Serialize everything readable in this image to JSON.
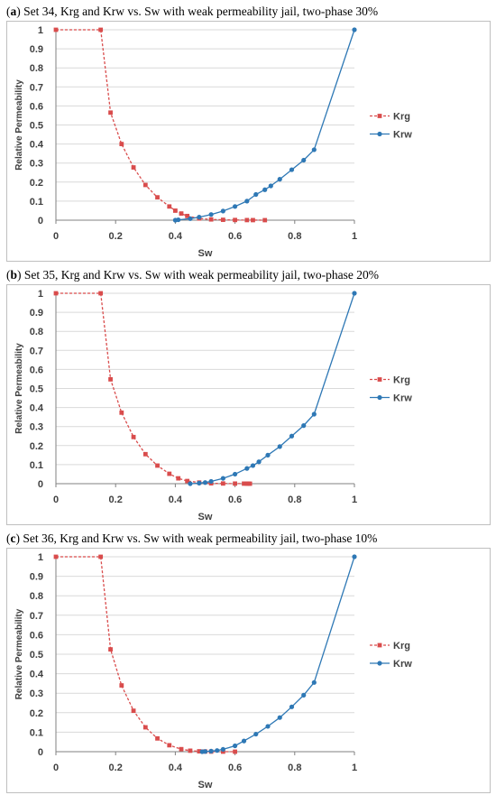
{
  "colors": {
    "krg": "#d94c4c",
    "krw": "#2e78b5",
    "axis": "#808080",
    "grid": "#d9d9d9"
  },
  "chart_data": [
    {
      "type": "line",
      "letter": "a",
      "title": "Set 34, Krg and Krw vs. Sw with weak permeability jail, two-phase 30%",
      "title_prefix": "(",
      "title_after_letter": ") ",
      "xlabel": "Sw",
      "ylabel": "Relative Permeability",
      "xlim": [
        0,
        1
      ],
      "ylim": [
        0,
        1
      ],
      "xticks": [
        "0",
        "0.2",
        "0.4",
        "0.6",
        "0.8",
        "1"
      ],
      "yticks": [
        "0",
        "0.1",
        "0.2",
        "0.3",
        "0.4",
        "0.5",
        "0.6",
        "0.7",
        "0.8",
        "0.9",
        "1"
      ],
      "grid": "horizontal",
      "legend": "right",
      "series": [
        {
          "name": "Krg",
          "style": "dashed-square",
          "x": [
            0,
            0.15,
            0.183,
            0.22,
            0.26,
            0.3,
            0.34,
            0.38,
            0.4,
            0.42,
            0.44,
            0.48,
            0.52,
            0.56,
            0.6,
            0.64,
            0.66,
            0.7
          ],
          "y": [
            1,
            1,
            0.565,
            0.4,
            0.277,
            0.185,
            0.12,
            0.072,
            0.05,
            0.035,
            0.022,
            0.009,
            0.004,
            0.002,
            0.001,
            0.0005,
            0.0003,
            0.0001
          ]
        },
        {
          "name": "Krw",
          "style": "solid-circle",
          "x": [
            0.4,
            0.41,
            0.45,
            0.48,
            0.52,
            0.56,
            0.6,
            0.64,
            0.67,
            0.7,
            0.72,
            0.75,
            0.79,
            0.83,
            0.865,
            1
          ],
          "y": [
            0,
            0.002,
            0.008,
            0.016,
            0.03,
            0.048,
            0.072,
            0.1,
            0.135,
            0.16,
            0.18,
            0.215,
            0.265,
            0.315,
            0.37,
            1
          ]
        }
      ]
    },
    {
      "type": "line",
      "letter": "b",
      "title": "Set 35, Krg and Krw vs. Sw with weak permeability jail, two-phase 20%",
      "title_prefix": "(",
      "title_after_letter": ") ",
      "xlabel": "Sw",
      "ylabel": "Relative Permeability",
      "xlim": [
        0,
        1
      ],
      "ylim": [
        0,
        1
      ],
      "xticks": [
        "0",
        "0.2",
        "0.4",
        "0.6",
        "0.8",
        "1"
      ],
      "yticks": [
        "0",
        "0.1",
        "0.2",
        "0.3",
        "0.4",
        "0.5",
        "0.6",
        "0.7",
        "0.8",
        "0.9",
        "1"
      ],
      "grid": "horizontal",
      "legend": "right",
      "series": [
        {
          "name": "Krg",
          "style": "dashed-square",
          "x": [
            0,
            0.15,
            0.183,
            0.22,
            0.26,
            0.3,
            0.34,
            0.38,
            0.41,
            0.44,
            0.48,
            0.52,
            0.56,
            0.6,
            0.63,
            0.64,
            0.645,
            0.65
          ],
          "y": [
            1,
            1,
            0.548,
            0.373,
            0.245,
            0.155,
            0.095,
            0.052,
            0.028,
            0.014,
            0.006,
            0.002,
            0.001,
            0.0005,
            0.0003,
            0.0002,
            0.0001,
            0
          ]
        },
        {
          "name": "Krw",
          "style": "solid-circle",
          "x": [
            0.45,
            0.48,
            0.5,
            0.52,
            0.56,
            0.6,
            0.64,
            0.66,
            0.68,
            0.71,
            0.75,
            0.79,
            0.83,
            0.865,
            1
          ],
          "y": [
            0,
            0.003,
            0.006,
            0.012,
            0.028,
            0.05,
            0.08,
            0.095,
            0.115,
            0.15,
            0.195,
            0.25,
            0.305,
            0.365,
            1
          ]
        }
      ]
    },
    {
      "type": "line",
      "letter": "c",
      "title": "Set 36, Krg and Krw vs. Sw with weak permeability jail, two-phase 10%",
      "title_prefix": "(",
      "title_after_letter": ") ",
      "xlabel": "Sw",
      "ylabel": "Relative Permeability",
      "xlim": [
        0,
        1
      ],
      "ylim": [
        0,
        1
      ],
      "xticks": [
        "0",
        "0.2",
        "0.4",
        "0.6",
        "0.8",
        "1"
      ],
      "yticks": [
        "0",
        "0.1",
        "0.2",
        "0.3",
        "0.4",
        "0.5",
        "0.6",
        "0.7",
        "0.8",
        "0.9",
        "1"
      ],
      "grid": "horizontal",
      "legend": "right",
      "series": [
        {
          "name": "Krg",
          "style": "dashed-square",
          "x": [
            0,
            0.15,
            0.183,
            0.22,
            0.26,
            0.3,
            0.34,
            0.38,
            0.42,
            0.45,
            0.48,
            0.5,
            0.52,
            0.56,
            0.6
          ],
          "y": [
            1,
            1,
            0.525,
            0.34,
            0.21,
            0.125,
            0.068,
            0.033,
            0.013,
            0.005,
            0.002,
            0.001,
            0.0005,
            0.0002,
            0
          ]
        },
        {
          "name": "Krw",
          "style": "solid-circle",
          "x": [
            0.49,
            0.5,
            0.52,
            0.54,
            0.56,
            0.6,
            0.63,
            0.67,
            0.71,
            0.75,
            0.79,
            0.83,
            0.865,
            1
          ],
          "y": [
            0,
            0.001,
            0.003,
            0.006,
            0.012,
            0.03,
            0.055,
            0.09,
            0.13,
            0.175,
            0.23,
            0.29,
            0.355,
            1
          ]
        }
      ]
    }
  ]
}
